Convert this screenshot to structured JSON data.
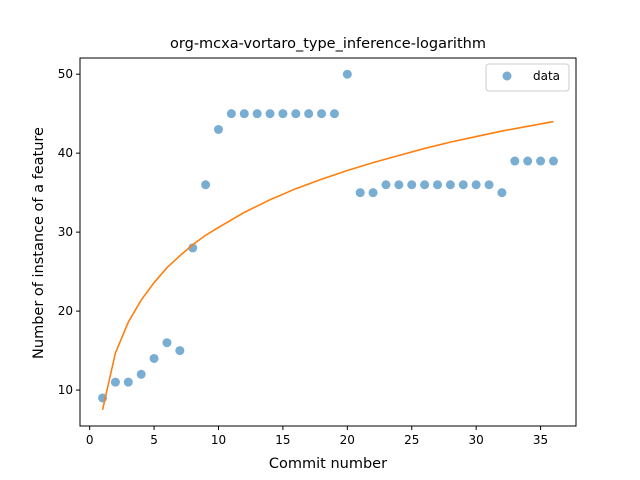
{
  "chart_data": {
    "type": "scatter",
    "title": "org-mcxa-vortaro_type_inference-logarithm",
    "xlabel": "Commit number",
    "ylabel": "Number of instance of a feature",
    "xlim": [
      -0.75,
      37.75
    ],
    "ylim": [
      5.45,
      52.05
    ],
    "xticks": [
      0,
      5,
      10,
      15,
      20,
      25,
      30,
      35
    ],
    "yticks": [
      10,
      20,
      30,
      40,
      50
    ],
    "grid": false,
    "legend": {
      "position": "top-right",
      "entries": [
        "data"
      ]
    },
    "colors": {
      "scatter": "#1f77b4",
      "fit": "#ff7f0e"
    },
    "series": [
      {
        "name": "data",
        "kind": "scatter",
        "x": [
          1,
          2,
          3,
          4,
          5,
          6,
          7,
          8,
          9,
          10,
          11,
          12,
          13,
          14,
          15,
          16,
          17,
          18,
          19,
          20,
          21,
          22,
          23,
          24,
          25,
          26,
          27,
          28,
          29,
          30,
          31,
          32,
          33,
          34,
          35,
          36
        ],
        "y": [
          9,
          11,
          11,
          12,
          14,
          16,
          15,
          28,
          36,
          43,
          45,
          45,
          45,
          45,
          45,
          45,
          45,
          45,
          45,
          50,
          35,
          35,
          36,
          36,
          36,
          36,
          36,
          36,
          36,
          36,
          36,
          35,
          39,
          39,
          39,
          39
        ]
      },
      {
        "kind": "line",
        "x": [
          1,
          1.5,
          2,
          3,
          4,
          5,
          6,
          7,
          8,
          9,
          10,
          12,
          14,
          16,
          18,
          20,
          22,
          24,
          26,
          28,
          30,
          32,
          34,
          36
        ],
        "y": [
          7.5,
          11.1,
          14.7,
          18.6,
          21.4,
          23.6,
          25.5,
          27.0,
          28.4,
          29.6,
          30.6,
          32.5,
          34.1,
          35.5,
          36.7,
          37.8,
          38.8,
          39.7,
          40.6,
          41.4,
          42.1,
          42.8,
          43.4,
          44.0
        ]
      }
    ]
  }
}
